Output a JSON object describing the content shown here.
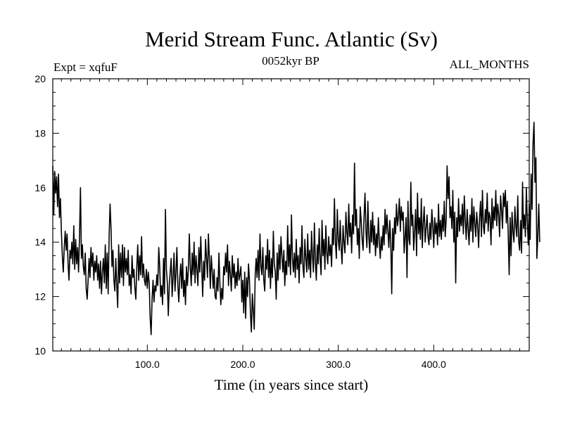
{
  "chart_data": {
    "type": "line",
    "title": "Merid Stream Func. Atlantic (Sv)",
    "subtitle_left": "Expt = xqfuF",
    "subtitle_center": "0052kyr BP",
    "subtitle_right": "ALL_MONTHS",
    "xlabel": "Time (in years since start)",
    "ylabel": "",
    "xlim": [
      1,
      500
    ],
    "ylim": [
      10,
      20
    ],
    "x_ticks": [
      100,
      200,
      300,
      400
    ],
    "x_tick_labels": [
      "100.0",
      "200.0",
      "300.0",
      "400.0"
    ],
    "y_ticks": [
      10,
      12,
      14,
      16,
      18,
      20
    ],
    "y_tick_labels": [
      "10",
      "12",
      "14",
      "16",
      "18",
      "20"
    ],
    "grid": false,
    "series": [
      {
        "name": "Merid Stream Func. Atlantic",
        "color": "#000000",
        "x_start": 1,
        "x_step": 1,
        "values": [
          16.8,
          15.0,
          16.6,
          15.8,
          16.4,
          15.3,
          16.5,
          14.9,
          15.6,
          14.4,
          13.5,
          12.9,
          13.8,
          14.4,
          13.7,
          14.3,
          13.2,
          12.6,
          13.7,
          13.4,
          14.0,
          13.2,
          14.6,
          13.0,
          14.1,
          13.2,
          13.8,
          12.9,
          14.2,
          16.0,
          13.4,
          13.9,
          13.1,
          12.8,
          13.6,
          12.3,
          11.9,
          12.6,
          13.4,
          12.7,
          13.8,
          13.1,
          13.6,
          12.6,
          13.3,
          12.9,
          13.5,
          12.6,
          13.2,
          12.3,
          13.3,
          12.1,
          12.9,
          13.4,
          12.5,
          13.9,
          12.3,
          13.6,
          12.1,
          14.2,
          15.4,
          14.5,
          13.1,
          13.7,
          12.6,
          12.2,
          13.4,
          12.4,
          11.6,
          13.9,
          12.5,
          13.6,
          12.7,
          13.9,
          12.4,
          13.8,
          12.9,
          13.4,
          12.8,
          13.7,
          12.4,
          12.8,
          12.1,
          13.5,
          12.7,
          13.0,
          12.3,
          11.9,
          13.1,
          13.9,
          12.6,
          13.5,
          12.8,
          14.2,
          12.7,
          13.2,
          12.6,
          12.4,
          13.0,
          12.3,
          12.9,
          12.5,
          11.2,
          10.6,
          11.9,
          12.6,
          11.8,
          12.4,
          12.2,
          12.8,
          12.4,
          13.8,
          13.1,
          12.0,
          12.4,
          11.7,
          13.4,
          12.1,
          15.2,
          13.0,
          12.5,
          11.3,
          12.4,
          12.9,
          13.4,
          12.0,
          12.7,
          13.6,
          12.2,
          12.9,
          13.8,
          12.4,
          11.8,
          12.7,
          13.2,
          12.3,
          13.4,
          12.0,
          12.6,
          11.7,
          13.1,
          12.4,
          13.0,
          14.3,
          13.1,
          12.4,
          13.6,
          12.8,
          14.0,
          12.5,
          13.5,
          13.0,
          12.4,
          13.8,
          12.9,
          14.2,
          13.1,
          12.0,
          13.3,
          12.6,
          14.1,
          13.4,
          12.7,
          14.3,
          13.4,
          12.3,
          13.5,
          12.9,
          12.3,
          13.0,
          12.0,
          11.9,
          12.7,
          12.2,
          13.6,
          12.5,
          11.7,
          12.3,
          11.9,
          13.1,
          12.8,
          13.6,
          12.9,
          13.9,
          12.4,
          13.3,
          12.8,
          12.2,
          13.5,
          12.7,
          13.2,
          12.3,
          12.9,
          12.4,
          13.4,
          12.6,
          12.8,
          13.1,
          11.8,
          12.6,
          11.4,
          12.9,
          11.2,
          12.7,
          12.0,
          13.2,
          12.6,
          11.4,
          10.7,
          12.1,
          11.5,
          10.8,
          12.8,
          13.4,
          12.7,
          13.7,
          12.6,
          14.3,
          13.1,
          12.8,
          13.8,
          12.6,
          12.2,
          13.5,
          13.0,
          14.1,
          12.7,
          13.7,
          12.3,
          13.4,
          12.7,
          14.4,
          13.2,
          12.9,
          11.9,
          13.6,
          12.6,
          13.9,
          13.0,
          14.2,
          13.5,
          12.9,
          13.7,
          12.4,
          13.3,
          12.8,
          14.6,
          13.1,
          13.9,
          12.8,
          15.0,
          13.4,
          12.9,
          13.6,
          12.7,
          14.1,
          13.0,
          13.5,
          12.5,
          13.8,
          13.2,
          14.6,
          13.1,
          12.7,
          14.1,
          13.4,
          12.9,
          14.3,
          13.0,
          13.7,
          12.7,
          14.4,
          13.5,
          12.9,
          14.7,
          13.3,
          12.6,
          13.9,
          13.2,
          14.5,
          13.4,
          12.8,
          14.8,
          13.5,
          14.1,
          13.0,
          14.6,
          13.6,
          13.2,
          14.2,
          13.5,
          13.9,
          13.1,
          14.5,
          13.9,
          15.6,
          14.0,
          13.4,
          15.2,
          14.1,
          13.7,
          14.8,
          13.8,
          13.2,
          14.6,
          14.0,
          13.6,
          15.1,
          14.4,
          13.9,
          15.4,
          14.2,
          14.7,
          13.6,
          15.0,
          14.3,
          16.9,
          14.6,
          15.2,
          13.9,
          14.5,
          13.4,
          15.3,
          14.8,
          14.1,
          13.7,
          14.9,
          15.8,
          14.4,
          13.8,
          15.5,
          14.2,
          13.6,
          14.8,
          14.0,
          15.1,
          13.9,
          14.6,
          13.5,
          14.3,
          13.8,
          14.9,
          14.0,
          13.4,
          14.2,
          13.7,
          14.6,
          13.9,
          15.2,
          14.3,
          15.0,
          14.4,
          13.8,
          14.8,
          14.0,
          12.1,
          14.5,
          13.7,
          14.9,
          14.3,
          15.4,
          14.6,
          14.9,
          15.6,
          14.4,
          15.3,
          14.8,
          15.1,
          13.6,
          14.2,
          14.9,
          12.7,
          15.5,
          14.1,
          13.9,
          16.2,
          14.6,
          15.0,
          13.7,
          14.4,
          15.2,
          13.5,
          15.8,
          14.3,
          14.9,
          14.1,
          15.6,
          13.8,
          14.7,
          15.3,
          14.0,
          14.5,
          15.0,
          14.2,
          13.9,
          14.7,
          14.1,
          15.2,
          14.6,
          13.8,
          14.9,
          14.3,
          14.7,
          13.9,
          15.4,
          14.2,
          14.8,
          14.1,
          15.0,
          14.4,
          15.5,
          14.2,
          14.8,
          16.8,
          15.6,
          16.4,
          14.9,
          15.3,
          14.5,
          15.9,
          14.0,
          15.1,
          12.5,
          14.9,
          14.2,
          15.6,
          14.4,
          15.0,
          14.6,
          15.4,
          14.3,
          15.7,
          14.8,
          14.1,
          15.2,
          14.5,
          13.9,
          15.0,
          14.4,
          15.6,
          14.0,
          15.3,
          14.7,
          14.2,
          15.1,
          14.6,
          13.8,
          14.9,
          15.5,
          14.2,
          15.9,
          14.6,
          14.3,
          15.2,
          14.7,
          15.8,
          14.4,
          15.1,
          14.9,
          13.9,
          15.6,
          14.5,
          15.3,
          14.8,
          15.9,
          14.6,
          15.4,
          15.0,
          14.2,
          15.7,
          15.2,
          14.5,
          15.8,
          15.3,
          15.9,
          14.7,
          15.5,
          14.3,
          12.8,
          14.9,
          13.5,
          15.1,
          14.4,
          14.0,
          15.3,
          14.6,
          14.2,
          15.7,
          14.0,
          13.7,
          14.8,
          13.6,
          16.2,
          14.5,
          15.0,
          14.2,
          16.0,
          14.8,
          13.9,
          15.4,
          14.1,
          16.5,
          15.2,
          17.6,
          18.4,
          16.2,
          17.1,
          13.4,
          14.2,
          15.4,
          14.0
        ]
      }
    ]
  }
}
